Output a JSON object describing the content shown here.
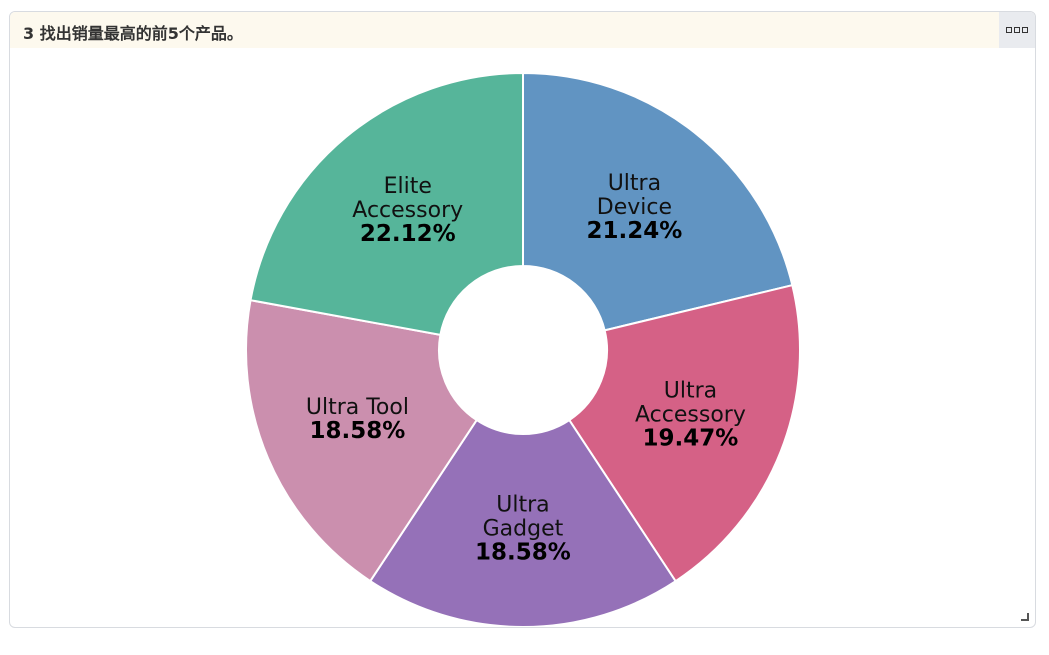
{
  "panel": {
    "title": "3 找出销量最高的前5个产品。",
    "menu_icon": "more-options-icon",
    "resize_icon": "resize-handle-icon"
  },
  "chart_data": {
    "type": "pie",
    "donut": true,
    "slices": [
      {
        "label": "Ultra Device",
        "label_lines": [
          "Ultra",
          "Device"
        ],
        "percent": 21.24,
        "percent_text": "21.24%",
        "color": "#6194c2"
      },
      {
        "label": "Ultra Accessory",
        "label_lines": [
          "Ultra",
          "Accessory"
        ],
        "percent": 19.47,
        "percent_text": "19.47%",
        "color": "#d56186"
      },
      {
        "label": "Ultra Gadget",
        "label_lines": [
          "Ultra",
          "Gadget"
        ],
        "percent": 18.58,
        "percent_text": "18.58%",
        "color": "#9571b8"
      },
      {
        "label": "Ultra Tool",
        "label_lines": [
          "Ultra Tool"
        ],
        "percent": 18.58,
        "percent_text": "18.58%",
        "color": "#cb8fae"
      },
      {
        "label": "Elite Accessory",
        "label_lines": [
          "Elite",
          "Accessory"
        ],
        "percent": 22.12,
        "percent_text": "22.12%",
        "color": "#56b59a"
      }
    ]
  }
}
